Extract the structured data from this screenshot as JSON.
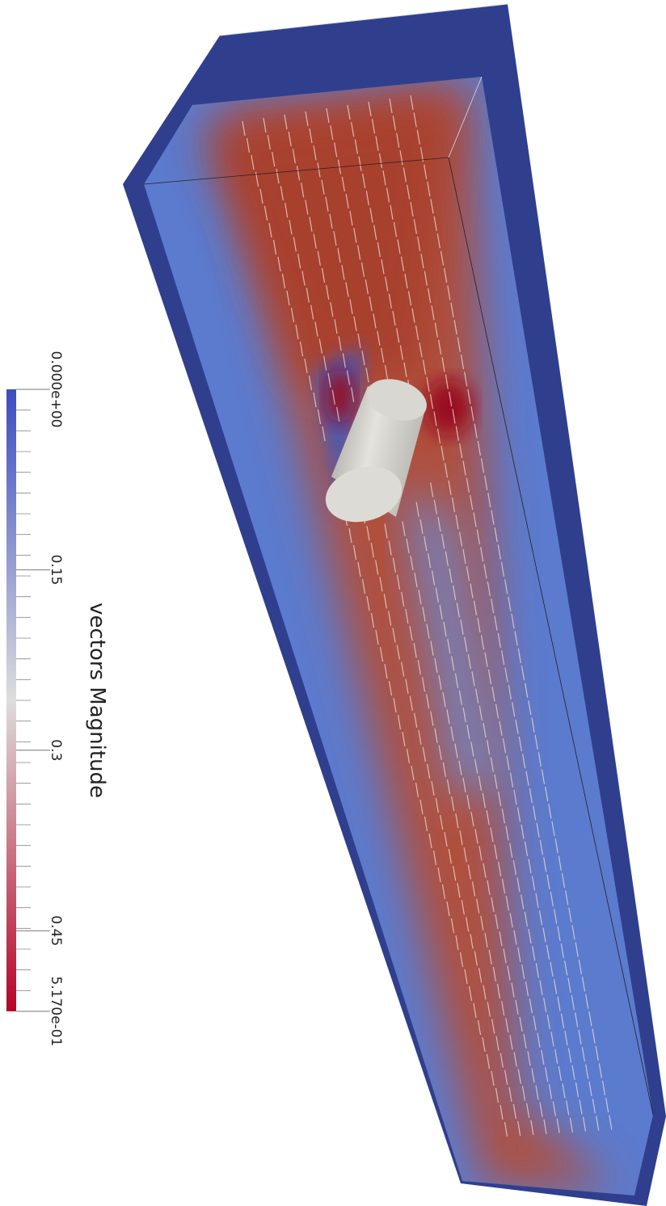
{
  "colorbar": {
    "title": "vectors Magnitude",
    "range": [
      0,
      0.517
    ],
    "ticks": [
      {
        "value": 0,
        "label": "0.000e+00"
      },
      0.15,
      0.3,
      0.45,
      {
        "value": 0.517,
        "label": "5.170e-01"
      }
    ],
    "colors": [
      "#3b4cc0",
      "#dddddd",
      "#b40426"
    ]
  }
}
